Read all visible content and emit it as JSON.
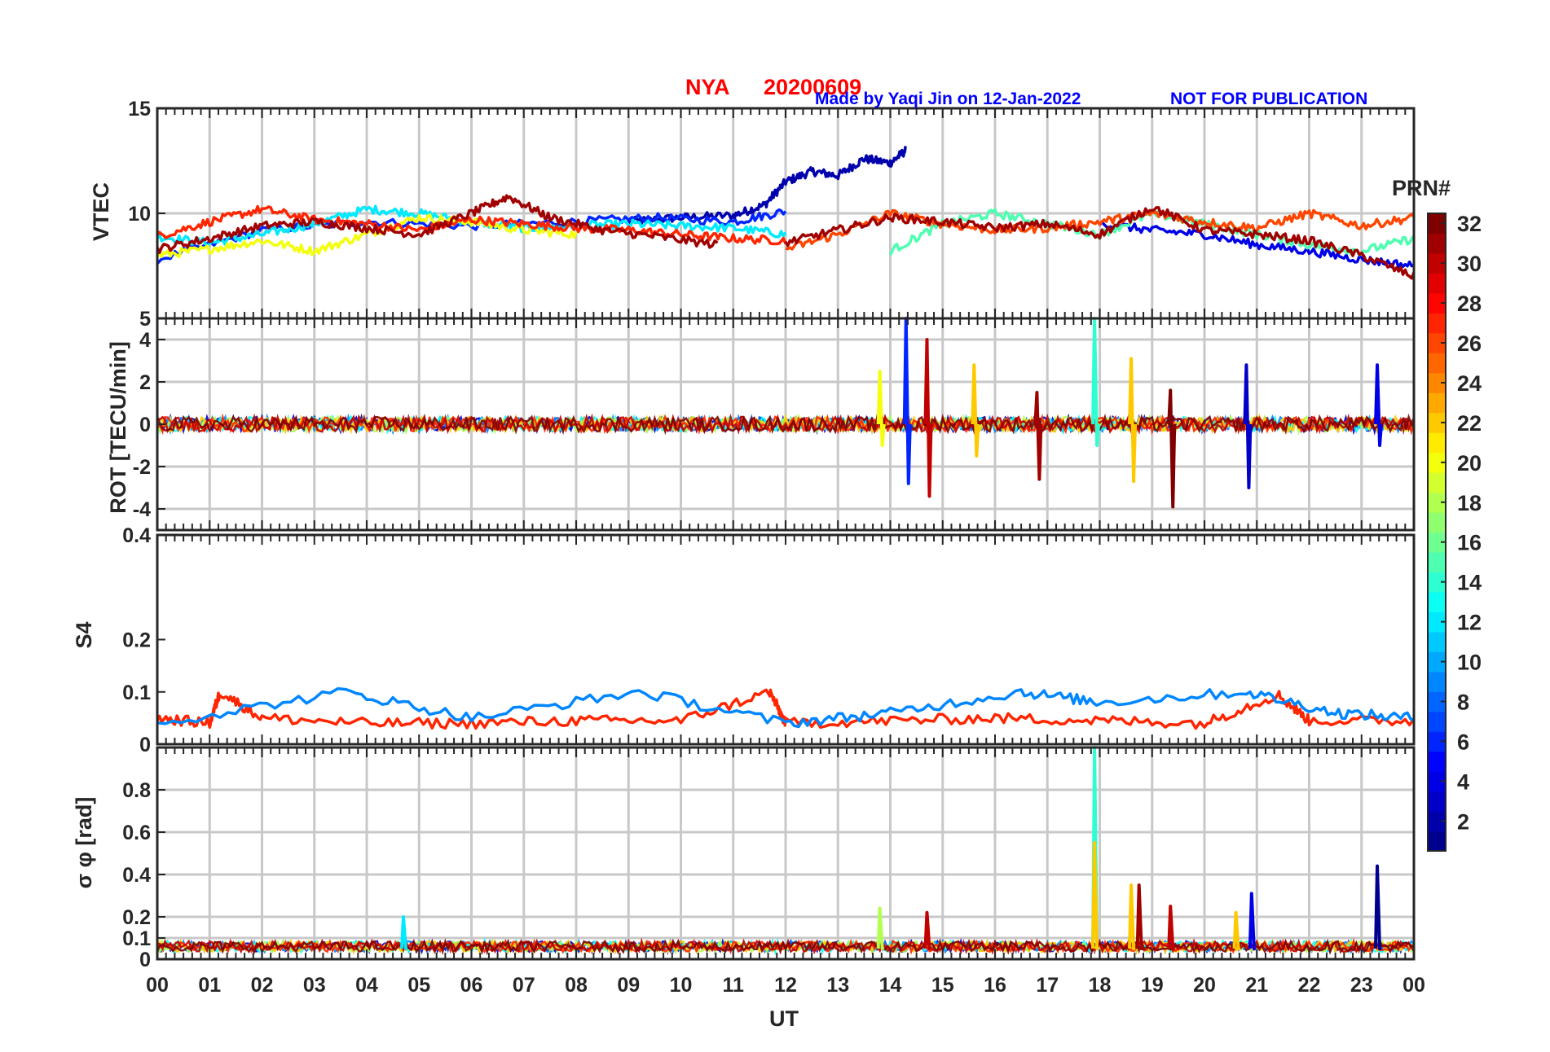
{
  "header": {
    "station": "NYA",
    "date": "20200609",
    "credit": "Made by Yaqi Jin on 12-Jan-2022",
    "notice": "NOT FOR PUBLICATION"
  },
  "colors": {
    "title_red": "#ff0000",
    "credit_blue": "#0000ff",
    "axis": "#262626",
    "grid": "#c8c8c8",
    "colormap": [
      "#00008f",
      "#0000ff",
      "#007fff",
      "#00ffff",
      "#7fff7f",
      "#ffff00",
      "#ff7f00",
      "#ff0000",
      "#7f0000"
    ]
  },
  "x_axis": {
    "label": "UT",
    "ticks": [
      "00",
      "01",
      "02",
      "03",
      "04",
      "05",
      "06",
      "07",
      "08",
      "09",
      "10",
      "11",
      "12",
      "13",
      "14",
      "15",
      "16",
      "17",
      "18",
      "19",
      "20",
      "21",
      "22",
      "23",
      "00"
    ],
    "range_hours": [
      0,
      24
    ]
  },
  "colorbar": {
    "title": "PRN#",
    "range": [
      1,
      32
    ],
    "ticks": [
      "2",
      "4",
      "6",
      "8",
      "10",
      "12",
      "14",
      "16",
      "18",
      "20",
      "22",
      "24",
      "26",
      "28",
      "30",
      "32"
    ]
  },
  "chart_data": [
    {
      "type": "line",
      "panel": "vtec",
      "ylabel": "VTEC",
      "ylim": [
        5,
        15
      ],
      "yticks": [
        "15",
        "10"
      ],
      "grid": true,
      "x_unit": "UT hour",
      "series": [
        {
          "prn": 2,
          "x": [
            9.0,
            10.0,
            11.0,
            11.6,
            12.0,
            12.5,
            13.0,
            13.5,
            14.0,
            14.3
          ],
          "y": [
            9.6,
            9.8,
            9.9,
            10.4,
            11.5,
            12.0,
            11.8,
            12.6,
            12.4,
            13.0
          ]
        },
        {
          "prn": 6,
          "x": [
            0.0,
            2.0,
            4.0,
            6.0,
            8.0,
            9.5,
            11.0,
            12.0
          ],
          "y": [
            7.8,
            9.2,
            9.6,
            9.4,
            9.6,
            9.8,
            9.6,
            10.1
          ]
        },
        {
          "prn": 12,
          "x": [
            0.0,
            1.0,
            2.0,
            3.0,
            4.0,
            5.0,
            6.0,
            7.0,
            8.0,
            9.0,
            10.0,
            11.0,
            12.0
          ],
          "y": [
            8.9,
            8.6,
            9.0,
            9.5,
            10.2,
            10.0,
            9.6,
            9.3,
            9.4,
            9.5,
            9.4,
            9.3,
            9.0
          ]
        },
        {
          "prn": 20,
          "x": [
            0.0,
            1.0,
            2.0,
            3.0,
            4.0,
            5.0,
            6.0,
            7.0,
            8.0
          ],
          "y": [
            8.0,
            8.3,
            8.7,
            8.2,
            9.0,
            9.8,
            9.6,
            9.2,
            9.0
          ]
        },
        {
          "prn": 27,
          "x": [
            0.0,
            1.0,
            2.0,
            3.0,
            4.0,
            5.0,
            6.0,
            7.0,
            8.0,
            9.0,
            10.0,
            11.0,
            12.0
          ],
          "y": [
            8.9,
            9.6,
            10.2,
            9.7,
            9.5,
            9.2,
            9.7,
            9.5,
            9.3,
            9.2,
            9.0,
            8.8,
            8.7
          ]
        },
        {
          "prn": 31,
          "x": [
            0.0,
            1.0,
            2.0,
            3.0,
            4.0,
            5.0,
            6.0,
            6.7,
            7.5,
            8.5,
            9.5,
            10.7
          ],
          "y": [
            8.3,
            8.8,
            9.4,
            9.6,
            9.3,
            9.0,
            10.0,
            10.8,
            9.8,
            9.2,
            8.9,
            8.5
          ]
        },
        {
          "prn": 4,
          "x": [
            18.0,
            19.0,
            20.0,
            21.0,
            22.0,
            23.0,
            24.0
          ],
          "y": [
            9.5,
            9.2,
            9.0,
            8.5,
            8.2,
            7.8,
            7.5
          ]
        },
        {
          "prn": 15,
          "x": [
            14.0,
            15.0,
            16.0,
            17.0,
            18.0,
            19.0,
            20.0,
            21.0,
            22.0,
            23.0,
            24.0
          ],
          "y": [
            8.2,
            9.5,
            10.0,
            9.5,
            9.0,
            10.0,
            9.5,
            9.0,
            8.5,
            8.2,
            8.8
          ]
        },
        {
          "prn": 26,
          "x": [
            12.0,
            13.0,
            14.0,
            15.0,
            16.0,
            17.0,
            18.0,
            19.0,
            20.0,
            21.0,
            22.0,
            23.0,
            24.0
          ],
          "y": [
            8.3,
            9.0,
            10.0,
            9.5,
            9.2,
            9.3,
            9.6,
            10.0,
            9.6,
            9.3,
            10.0,
            9.4,
            9.8
          ]
        },
        {
          "prn": 31,
          "x": [
            12.0,
            13.0,
            14.0,
            15.0,
            16.0,
            17.0,
            18.0,
            19.0,
            20.0,
            21.0,
            22.0,
            23.0,
            24.0
          ],
          "y": [
            8.6,
            9.2,
            9.8,
            9.6,
            9.3,
            9.5,
            9.0,
            10.3,
            9.2,
            9.0,
            8.7,
            8.0,
            7.0
          ]
        }
      ]
    },
    {
      "type": "line",
      "panel": "rot",
      "ylabel": "ROT [TECU/min]",
      "ylim": [
        -5,
        5
      ],
      "yticks": [
        "5",
        "4",
        "2",
        "0",
        "-2",
        "-4"
      ],
      "grid": true,
      "x_unit": "UT hour",
      "spikes": [
        {
          "prn": 6,
          "x": 14.3,
          "ymin": -2.8,
          "ymax": 5.0
        },
        {
          "prn": 30,
          "x": 14.7,
          "ymin": -3.4,
          "ymax": 4.0
        },
        {
          "prn": 20,
          "x": 13.8,
          "ymin": -1.0,
          "ymax": 2.5
        },
        {
          "prn": 22,
          "x": 15.6,
          "ymin": -1.5,
          "ymax": 2.8
        },
        {
          "prn": 14,
          "x": 17.9,
          "ymin": -1.0,
          "ymax": 5.0
        },
        {
          "prn": 31,
          "x": 16.8,
          "ymin": -2.6,
          "ymax": 1.5
        },
        {
          "prn": 22,
          "x": 18.6,
          "ymin": -2.7,
          "ymax": 3.1
        },
        {
          "prn": 32,
          "x": 19.35,
          "ymin": -3.9,
          "ymax": 1.6
        },
        {
          "prn": 3,
          "x": 20.8,
          "ymin": -3.0,
          "ymax": 2.8
        },
        {
          "prn": 4,
          "x": 23.3,
          "ymin": -1.0,
          "ymax": 2.8
        }
      ]
    },
    {
      "type": "line",
      "panel": "s4",
      "ylabel": "S4",
      "ylim": [
        0,
        0.4
      ],
      "yticks": [
        "0.4",
        "0.2",
        "0.1",
        "0"
      ],
      "grid": false,
      "x_unit": "UT hour",
      "series": [
        {
          "prn": 27,
          "x": [
            0.0,
            1.0,
            1.2,
            2.0,
            4.0,
            6.0,
            8.0,
            10.0,
            11.7,
            12.0,
            14.0,
            16.0,
            18.0,
            20.0,
            21.4,
            22.0,
            24.0
          ],
          "y": [
            0.05,
            0.04,
            0.1,
            0.05,
            0.04,
            0.04,
            0.045,
            0.045,
            0.1,
            0.04,
            0.045,
            0.05,
            0.045,
            0.04,
            0.095,
            0.045,
            0.045
          ]
        },
        {
          "prn": 9,
          "x": [
            0.0,
            3.6,
            6.0,
            9.2,
            12.0,
            14.0,
            16.5,
            18.0,
            20.8,
            22.5,
            24.0
          ],
          "y": [
            0.04,
            0.1,
            0.05,
            0.1,
            0.04,
            0.06,
            0.1,
            0.08,
            0.1,
            0.06,
            0.05
          ]
        }
      ]
    },
    {
      "type": "line",
      "panel": "sigma_phi",
      "ylabel": "σ φ [rad]",
      "ylim": [
        0,
        1
      ],
      "yticks": [
        "0.8",
        "0.6",
        "0.4",
        "0.2",
        "0.1",
        "0"
      ],
      "grid": true,
      "x_unit": "UT hour",
      "spikes": [
        {
          "prn": 14,
          "x": 17.9,
          "ymin": 0.05,
          "ymax": 1.0
        },
        {
          "prn": 22,
          "x": 17.9,
          "ymin": 0.05,
          "ymax": 0.55
        },
        {
          "prn": 22,
          "x": 18.6,
          "ymin": 0.05,
          "ymax": 0.35
        },
        {
          "prn": 31,
          "x": 18.75,
          "ymin": 0.05,
          "ymax": 0.35
        },
        {
          "prn": 1,
          "x": 23.3,
          "ymin": 0.05,
          "ymax": 0.44
        },
        {
          "prn": 4,
          "x": 20.9,
          "ymin": 0.05,
          "ymax": 0.31
        },
        {
          "prn": 30,
          "x": 19.35,
          "ymin": 0.05,
          "ymax": 0.25
        },
        {
          "prn": 18,
          "x": 13.8,
          "ymin": 0.05,
          "ymax": 0.24
        },
        {
          "prn": 30,
          "x": 14.7,
          "ymin": 0.05,
          "ymax": 0.22
        },
        {
          "prn": 22,
          "x": 20.6,
          "ymin": 0.05,
          "ymax": 0.22
        },
        {
          "prn": 12,
          "x": 4.7,
          "ymin": 0.05,
          "ymax": 0.2
        }
      ]
    }
  ]
}
